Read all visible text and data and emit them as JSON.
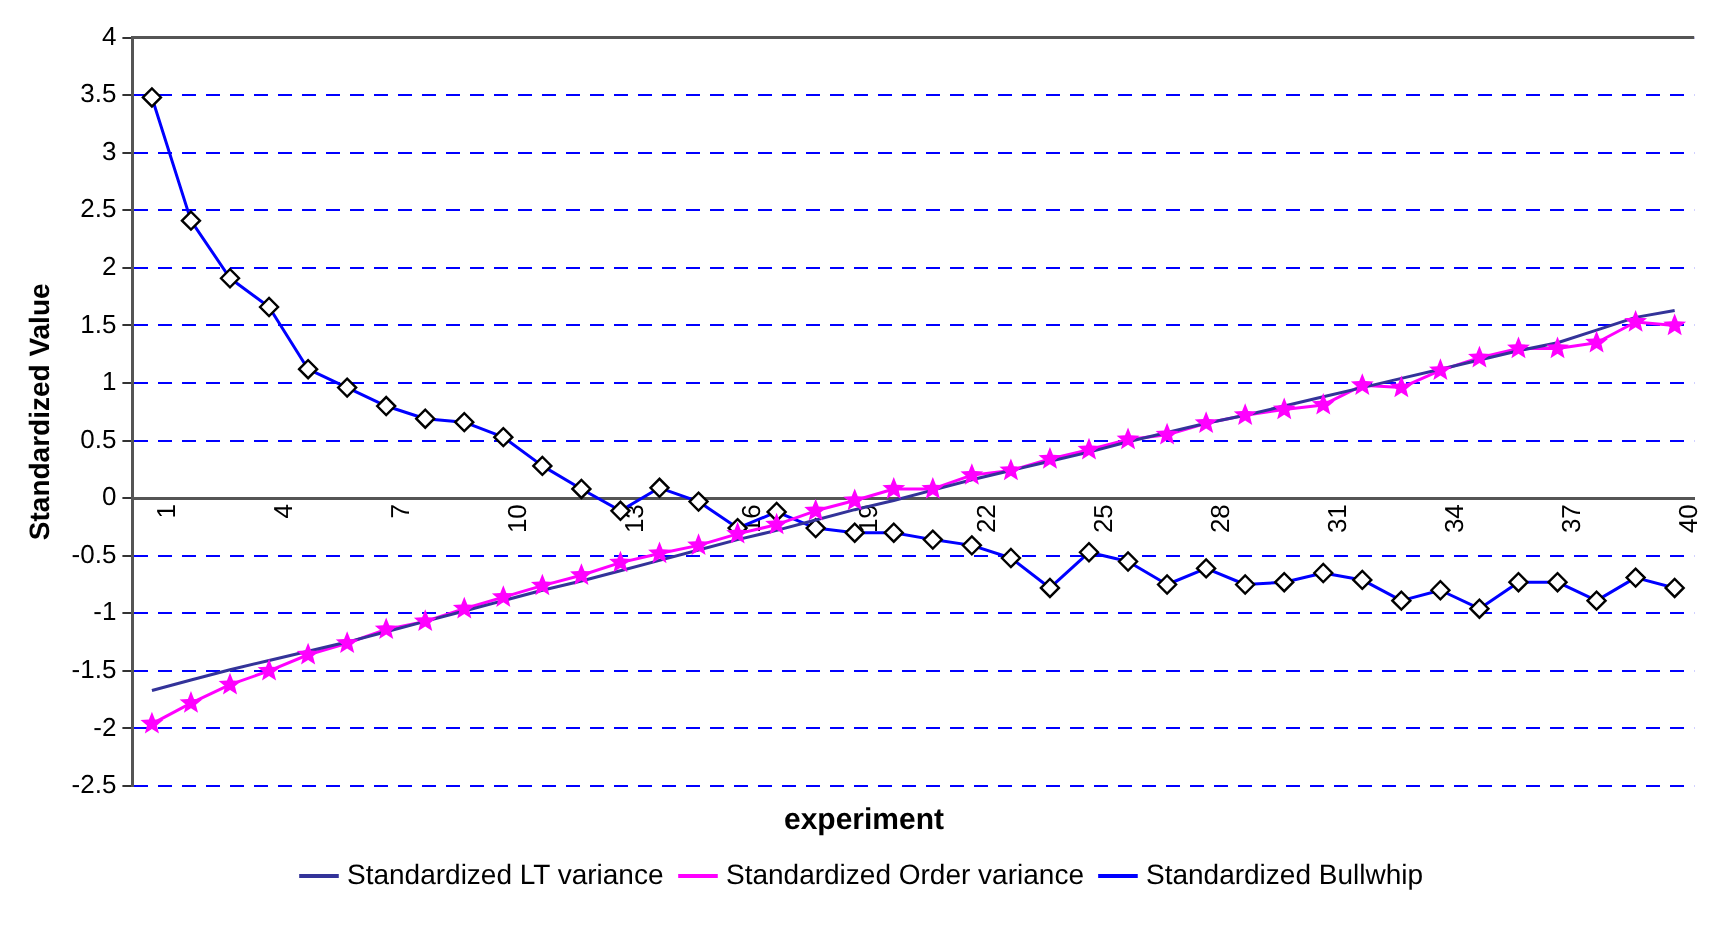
{
  "chart_data": {
    "type": "line",
    "xlabel": "experiment",
    "ylabel": "Standardized Value",
    "categories": [
      "1",
      null,
      null,
      "4",
      null,
      null,
      "7",
      null,
      null,
      "10",
      null,
      null,
      "13",
      null,
      null,
      "16",
      null,
      null,
      "19",
      null,
      null,
      "22",
      null,
      null,
      "25",
      null,
      null,
      "28",
      null,
      null,
      "31",
      null,
      null,
      "34",
      null,
      null,
      "37",
      null,
      null,
      "40"
    ],
    "ylim": [
      -2.5,
      4
    ],
    "yticks": [
      -2.5,
      -2,
      -1.5,
      -1,
      -0.5,
      0,
      0.5,
      1,
      1.5,
      2,
      2.5,
      3,
      3.5,
      4
    ],
    "grid": "y",
    "legend": "bottom",
    "line_style": "solid",
    "series": [
      {
        "name": "Standardized LT variance",
        "color": "#333399",
        "marker": "none",
        "values": [
          -1.67,
          -1.58,
          -1.49,
          -1.41,
          -1.33,
          -1.25,
          -1.16,
          -1.07,
          -0.98,
          -0.89,
          -0.8,
          -0.72,
          -0.63,
          -0.54,
          -0.45,
          -0.36,
          -0.28,
          -0.19,
          -0.1,
          -0.02,
          0.07,
          0.16,
          0.24,
          0.32,
          0.4,
          0.49,
          0.57,
          0.65,
          0.72,
          0.8,
          0.88,
          0.96,
          1.04,
          1.12,
          1.2,
          1.28,
          1.35,
          1.46,
          1.57,
          1.63
        ]
      },
      {
        "name": "Standardized Order variance",
        "color": "#ff00ff",
        "marker": "star",
        "values": [
          -1.96,
          -1.78,
          -1.62,
          -1.5,
          -1.36,
          -1.26,
          -1.14,
          -1.07,
          -0.96,
          -0.86,
          -0.76,
          -0.67,
          -0.56,
          -0.48,
          -0.41,
          -0.31,
          -0.23,
          -0.11,
          -0.02,
          0.08,
          0.08,
          0.2,
          0.24,
          0.34,
          0.42,
          0.51,
          0.55,
          0.65,
          0.72,
          0.77,
          0.81,
          0.98,
          0.96,
          1.11,
          1.22,
          1.3,
          1.3,
          1.35,
          1.53,
          1.5
        ]
      },
      {
        "name": "Standardized Bullwhip",
        "color": "#0000ff",
        "marker": "diamond",
        "values": [
          3.48,
          2.41,
          1.91,
          1.66,
          1.12,
          0.96,
          0.8,
          0.69,
          0.66,
          0.53,
          0.28,
          0.08,
          -0.11,
          0.09,
          -0.03,
          -0.26,
          -0.12,
          -0.26,
          -0.3,
          -0.3,
          -0.36,
          -0.41,
          -0.52,
          -0.78,
          -0.47,
          -0.55,
          -0.75,
          -0.61,
          -0.75,
          -0.73,
          -0.65,
          -0.71,
          -0.89,
          -0.8,
          -0.96,
          -0.73,
          -0.73,
          -0.89,
          -0.69,
          -0.78
        ]
      }
    ]
  }
}
